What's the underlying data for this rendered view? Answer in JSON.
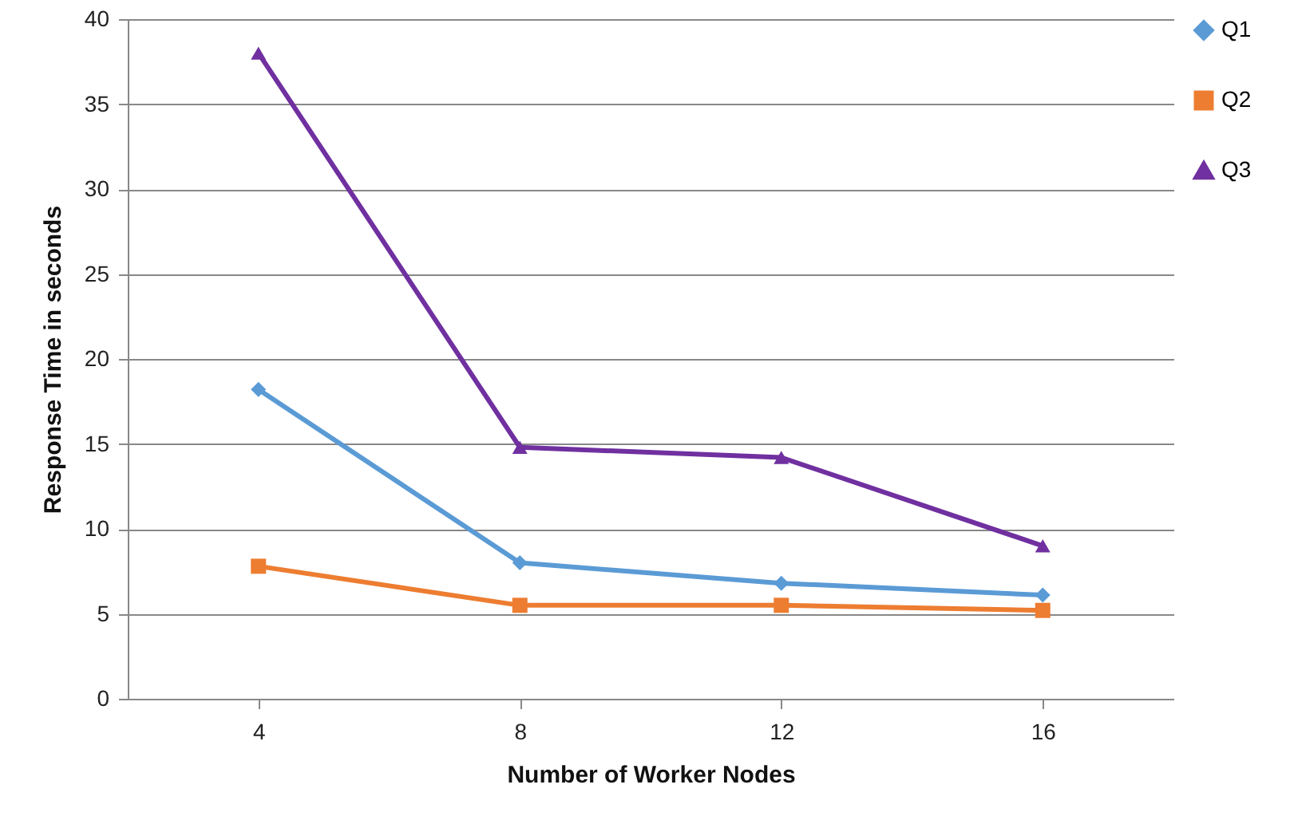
{
  "chart_data": {
    "type": "line",
    "xlabel": "Number of Worker Nodes",
    "ylabel": "Response Time in seconds",
    "categories": [
      "4",
      "8",
      "12",
      "16"
    ],
    "ylim": [
      0,
      40
    ],
    "yticks": [
      0,
      5,
      10,
      15,
      20,
      25,
      30,
      35,
      40
    ],
    "grid": "y",
    "legend": "right",
    "series": [
      {
        "name": "Q1",
        "color": "#5b9bd5",
        "marker": "diamond",
        "values": [
          18.2,
          8.0,
          6.8,
          6.1
        ]
      },
      {
        "name": "Q2",
        "color": "#ed7d31",
        "marker": "square",
        "values": [
          7.8,
          5.5,
          5.5,
          5.2
        ]
      },
      {
        "name": "Q3",
        "color": "#7030a0",
        "marker": "triangle",
        "values": [
          38,
          14.8,
          14.2,
          9.0
        ]
      }
    ]
  }
}
